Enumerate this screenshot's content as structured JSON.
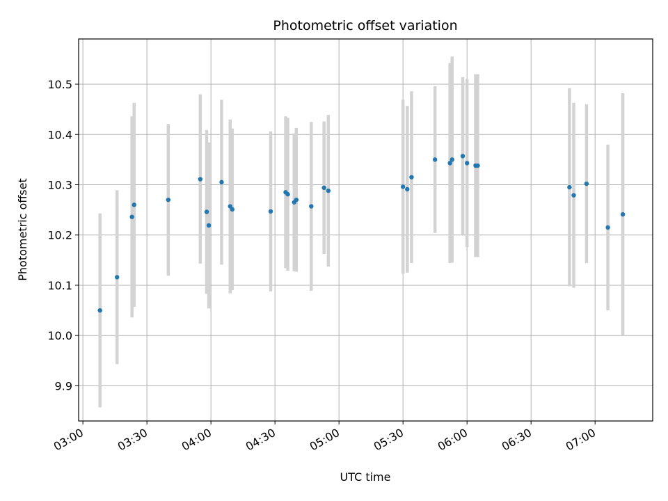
{
  "chart_data": {
    "type": "scatter",
    "title": "Photometric offset variation",
    "xlabel": "UTC time",
    "ylabel": "Photometric offset",
    "x_unit": "UTC HH:MM",
    "xlim": [
      "02:58",
      "07:27"
    ],
    "ylim": [
      9.83,
      10.59
    ],
    "x_ticks": [
      "03:00",
      "03:30",
      "04:00",
      "04:30",
      "05:00",
      "05:30",
      "06:00",
      "06:30",
      "07:00"
    ],
    "y_ticks": [
      "9.9",
      "10.0",
      "10.1",
      "10.2",
      "10.3",
      "10.4",
      "10.5"
    ],
    "grid": true,
    "legend": "none",
    "colors": {
      "point": "#1f77b4",
      "errorbar": "#d3d3d3",
      "grid": "#b0b0b0"
    },
    "series": [
      {
        "points": [
          {
            "x": "03:08",
            "y": 10.05,
            "ylo": 9.857,
            "yhi": 10.243
          },
          {
            "x": "03:16",
            "y": 10.116,
            "ylo": 9.943,
            "yhi": 10.289
          },
          {
            "x": "03:23",
            "y": 10.236,
            "ylo": 10.036,
            "yhi": 10.436
          },
          {
            "x": "03:24",
            "y": 10.26,
            "ylo": 10.057,
            "yhi": 10.463
          },
          {
            "x": "03:40",
            "y": 10.27,
            "ylo": 10.119,
            "yhi": 10.421
          },
          {
            "x": "03:55",
            "y": 10.311,
            "ylo": 10.143,
            "yhi": 10.48
          },
          {
            "x": "03:58",
            "y": 10.246,
            "ylo": 10.083,
            "yhi": 10.409
          },
          {
            "x": "03:59",
            "y": 10.219,
            "ylo": 10.054,
            "yhi": 10.384
          },
          {
            "x": "04:05",
            "y": 10.305,
            "ylo": 10.141,
            "yhi": 10.469
          },
          {
            "x": "04:09",
            "y": 10.257,
            "ylo": 10.084,
            "yhi": 10.43
          },
          {
            "x": "04:10",
            "y": 10.251,
            "ylo": 10.09,
            "yhi": 10.412
          },
          {
            "x": "04:28",
            "y": 10.247,
            "ylo": 10.088,
            "yhi": 10.406
          },
          {
            "x": "04:35",
            "y": 10.285,
            "ylo": 10.134,
            "yhi": 10.436
          },
          {
            "x": "04:36",
            "y": 10.281,
            "ylo": 10.129,
            "yhi": 10.433
          },
          {
            "x": "04:39",
            "y": 10.265,
            "ylo": 10.128,
            "yhi": 10.402
          },
          {
            "x": "04:40",
            "y": 10.27,
            "ylo": 10.127,
            "yhi": 10.413
          },
          {
            "x": "04:47",
            "y": 10.257,
            "ylo": 10.089,
            "yhi": 10.425
          },
          {
            "x": "04:53",
            "y": 10.294,
            "ylo": 10.162,
            "yhi": 10.426
          },
          {
            "x": "04:55",
            "y": 10.288,
            "ylo": 10.137,
            "yhi": 10.439
          },
          {
            "x": "05:30",
            "y": 10.296,
            "ylo": 10.123,
            "yhi": 10.469
          },
          {
            "x": "05:32",
            "y": 10.291,
            "ylo": 10.125,
            "yhi": 10.457
          },
          {
            "x": "05:34",
            "y": 10.315,
            "ylo": 10.144,
            "yhi": 10.486
          },
          {
            "x": "05:45",
            "y": 10.35,
            "ylo": 10.204,
            "yhi": 10.496
          },
          {
            "x": "05:52",
            "y": 10.343,
            "ylo": 10.144,
            "yhi": 10.542
          },
          {
            "x": "05:53",
            "y": 10.35,
            "ylo": 10.145,
            "yhi": 10.555
          },
          {
            "x": "05:58",
            "y": 10.357,
            "ylo": 10.2,
            "yhi": 10.514
          },
          {
            "x": "06:00",
            "y": 10.343,
            "ylo": 10.176,
            "yhi": 10.51
          },
          {
            "x": "06:04",
            "y": 10.338,
            "ylo": 10.156,
            "yhi": 10.52
          },
          {
            "x": "06:05",
            "y": 10.338,
            "ylo": 10.156,
            "yhi": 10.52
          },
          {
            "x": "06:48",
            "y": 10.295,
            "ylo": 10.098,
            "yhi": 10.492
          },
          {
            "x": "06:50",
            "y": 10.279,
            "ylo": 10.095,
            "yhi": 10.463
          },
          {
            "x": "06:56",
            "y": 10.302,
            "ylo": 10.144,
            "yhi": 10.46
          },
          {
            "x": "07:06",
            "y": 10.215,
            "ylo": 10.05,
            "yhi": 10.38
          },
          {
            "x": "07:13",
            "y": 10.241,
            "ylo": 10.0,
            "yhi": 10.482
          }
        ]
      }
    ]
  }
}
